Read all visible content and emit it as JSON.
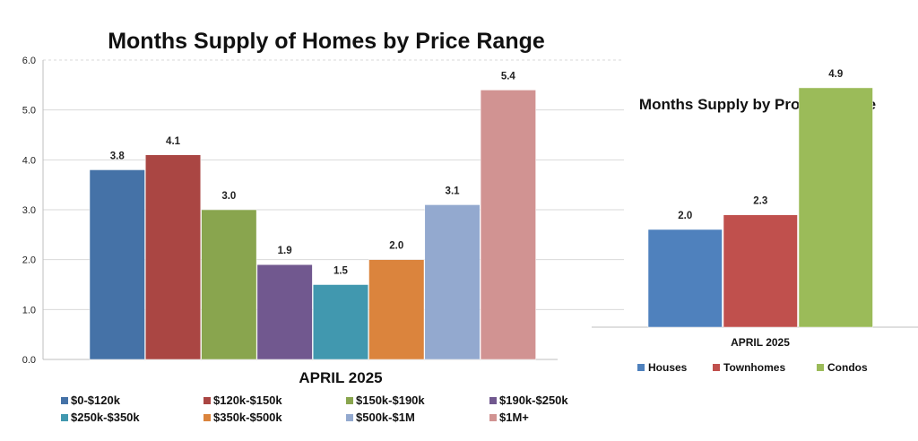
{
  "chart_data": [
    {
      "type": "bar",
      "title": "Months Supply of Homes by Price Range",
      "xlabel": "APRIL 2025",
      "ylabel": "",
      "ylim": [
        0,
        6
      ],
      "yticks": [
        "0.0",
        "1.0",
        "2.0",
        "3.0",
        "4.0",
        "5.0",
        "6.0"
      ],
      "grid": true,
      "legend_position": "bottom",
      "categories": [
        "$0-$120k",
        "$120k-$150k",
        "$150k-$190k",
        "$190k-$250k",
        "$250k-$350k",
        "$350k-$500k",
        "$500k-$1M",
        "$1M+"
      ],
      "values": [
        3.8,
        4.1,
        3.0,
        1.9,
        1.5,
        2.0,
        3.1,
        5.4
      ],
      "labels": [
        "3.8",
        "4.1",
        "3.0",
        "1.9",
        "1.5",
        "2.0",
        "3.1",
        "5.4"
      ],
      "colors": [
        "#4572A7",
        "#AA4643",
        "#89A54E",
        "#71588F",
        "#4198AF",
        "#DB843D",
        "#93A9CF",
        "#D19392"
      ]
    },
    {
      "type": "bar",
      "title": "Months Supply by Property Type",
      "xlabel": "APRIL 2025",
      "ylabel": "",
      "ylim": [
        0,
        6
      ],
      "legend_position": "bottom",
      "categories": [
        "Houses",
        "Townhomes",
        "Condos"
      ],
      "values": [
        2.0,
        2.3,
        4.9
      ],
      "labels": [
        "2.0",
        "2.3",
        "4.9"
      ],
      "colors": [
        "#4F81BD",
        "#C0504D",
        "#9BBB59"
      ]
    }
  ]
}
